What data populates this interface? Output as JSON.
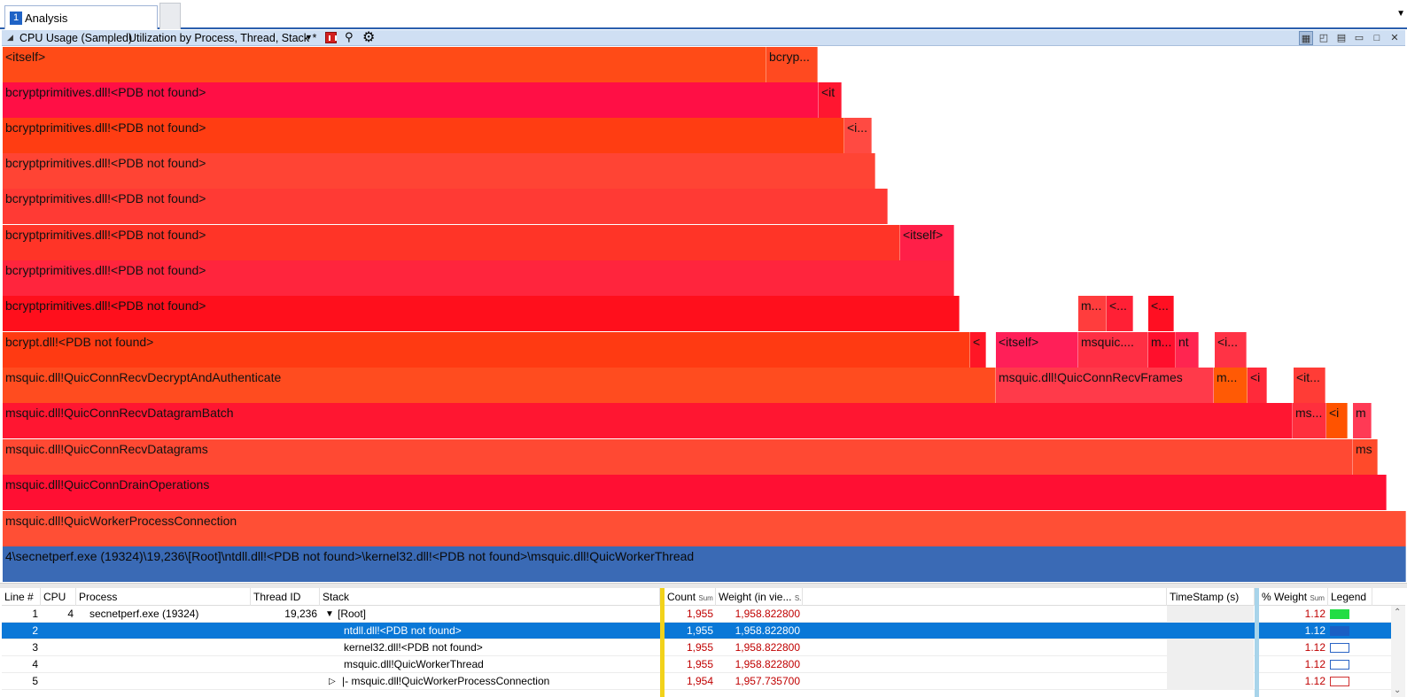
{
  "tab": {
    "number": "1",
    "label": "Analysis",
    "menu_icon": "caret-down-icon"
  },
  "viewbar": {
    "title": "CPU Usage (Sampled)",
    "preset": "Utilization by Process, Thread, Stack *",
    "icons": [
      "chart-icon",
      "find-icon",
      "gear-icon"
    ],
    "right_icons": [
      "table-graph-icon",
      "graph-icon",
      "table-icon",
      "minimize-icon",
      "maximize-icon",
      "close-icon"
    ]
  },
  "flame": {
    "root_label": "4\\secnetperf.exe (19324)\\19,236\\[Root]\\ntdll.dll!<PDB not found>\\kernel32.dll!<PDB not found>\\msquic.dll!QuicWorkerThread",
    "frames": [
      {
        "label": "<itself>",
        "color": "#ff4b17"
      },
      {
        "label": "bcryp...",
        "color": "#ff4a20"
      },
      {
        "label": "bcryptprimitives.dll!<PDB not found>",
        "color": "#ff0f45"
      },
      {
        "label": "<it",
        "color": "#ff1630"
      },
      {
        "label": "bcryptprimitives.dll!<PDB not found>",
        "color": "#ff3d12"
      },
      {
        "label": "<i...",
        "color": "#ff4a42"
      },
      {
        "label": "bcryptprimitives.dll!<PDB not found>",
        "color": "#ff4434"
      },
      {
        "label": "bcryptprimitives.dll!<PDB not found>",
        "color": "#ff3a34"
      },
      {
        "label": "bcryptprimitives.dll!<PDB not found>",
        "color": "#ff3427"
      },
      {
        "label": "<itself>",
        "color": "#ff1f48"
      },
      {
        "label": "bcryptprimitives.dll!<PDB not found>",
        "color": "#ff253d"
      },
      {
        "label": "bcryptprimitives.dll!<PDB not found>",
        "color": "#ff0f1c"
      },
      {
        "label": "m...",
        "color": "#ff3d3d"
      },
      {
        "label": "<...",
        "color": "#ff2035"
      },
      {
        "label": "<...",
        "color": "#ff0f22"
      },
      {
        "label": "bcrypt.dll!<PDB not found>",
        "color": "#ff3a12"
      },
      {
        "label": "<",
        "color": "#ff1626"
      },
      {
        "label": "<itself>",
        "color": "#ff1f58"
      },
      {
        "label": "msquic....",
        "color": "#ff2f44"
      },
      {
        "label": "m...",
        "color": "#ff0f2c"
      },
      {
        "label": "nt",
        "color": "#ff2550"
      },
      {
        "label": "<i...",
        "color": "#ff3345"
      },
      {
        "label": "msquic.dll!QuicConnRecvDecryptAndAuthenticate",
        "color": "#ff4c1f"
      },
      {
        "label": "msquic.dll!QuicConnRecvFrames",
        "color": "#ff3a4a"
      },
      {
        "label": "m...",
        "color": "#ff5a05"
      },
      {
        "label": "<i",
        "color": "#ff2a3a"
      },
      {
        "label": "<it...",
        "color": "#ff3c36"
      },
      {
        "label": "msquic.dll!QuicConnRecvDatagramBatch",
        "color": "#ff1631"
      },
      {
        "label": "ms...",
        "color": "#ff2f3d"
      },
      {
        "label": "<i",
        "color": "#ff5300"
      },
      {
        "label": "m",
        "color": "#ff3a55"
      },
      {
        "label": "msquic.dll!QuicConnRecvDatagrams",
        "color": "#ff4933"
      },
      {
        "label": "ms",
        "color": "#ff4a2a"
      },
      {
        "label": "msquic.dll!QuicConnDrainOperations",
        "color": "#ff0f33"
      },
      {
        "label": "msquic.dll!QuicWorkerProcessConnection",
        "color": "#ff4f35"
      }
    ]
  },
  "table": {
    "columns": [
      "Line #",
      "CPU",
      "Process",
      "Thread ID",
      "Stack",
      "Count",
      "Weight (in vie...",
      "TimeStamp (s)",
      "% Weight",
      "Legend"
    ],
    "count_sort": "Sum",
    "weight_sort": "S...",
    "pct_sort": "Sum",
    "rows": [
      {
        "line": "1",
        "cpu": "4",
        "process": "secnetperf.exe (19324)",
        "thread": "19,236",
        "stack": "[Root]",
        "expander": "▼",
        "count": "1,955",
        "weight": "1,958.822800",
        "pct": "1.12",
        "legend_color": "#22dd44",
        "selected": false
      },
      {
        "line": "2",
        "cpu": "",
        "process": "",
        "thread": "",
        "stack": "ntdll.dll!<PDB not found>",
        "expander": "",
        "count": "1,955",
        "weight": "1,958.822800",
        "pct": "1.12",
        "legend_color": "#1a5fc4",
        "selected": true
      },
      {
        "line": "3",
        "cpu": "",
        "process": "",
        "thread": "",
        "stack": "kernel32.dll!<PDB not found>",
        "expander": "",
        "count": "1,955",
        "weight": "1,958.822800",
        "pct": "1.12",
        "legend_color": "#2a64c5",
        "selected": false
      },
      {
        "line": "4",
        "cpu": "",
        "process": "",
        "thread": "",
        "stack": "msquic.dll!QuicWorkerThread",
        "expander": "",
        "count": "1,955",
        "weight": "1,958.822800",
        "pct": "1.12",
        "legend_color": "#2a64c5",
        "selected": false
      },
      {
        "line": "5",
        "cpu": "",
        "process": "",
        "thread": "",
        "stack": "|- msquic.dll!QuicWorkerProcessConnection",
        "expander": "▷",
        "count": "1,954",
        "weight": "1,957.735700",
        "pct": "1.12",
        "legend_color": "#d03030",
        "selected": false
      }
    ]
  }
}
